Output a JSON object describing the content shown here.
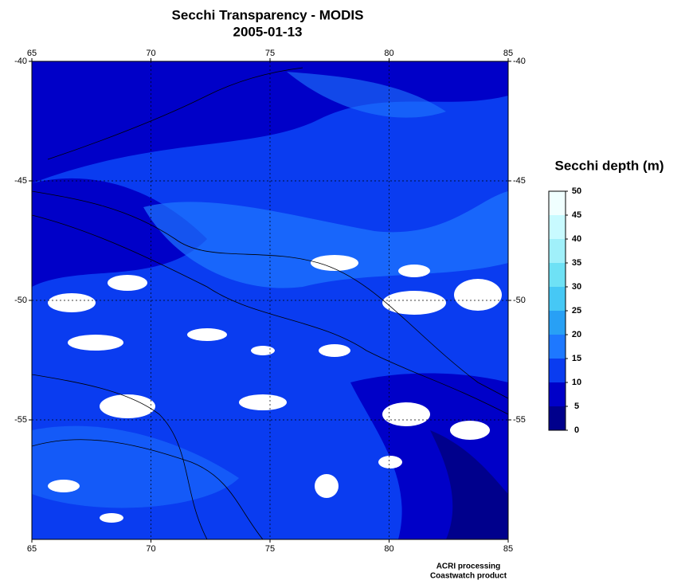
{
  "title": "Secchi Transparency - MODIS",
  "subtitle": "2005-01-13",
  "map": {
    "lonlim": [
      65,
      85
    ],
    "lonticks": [
      65,
      70,
      75,
      80,
      85
    ],
    "latlim": [
      -60,
      -40
    ],
    "latticks": [
      -40,
      -45,
      -50,
      -55
    ],
    "grid": true
  },
  "colorbar": {
    "label": "Secchi depth (m)",
    "range": [
      0,
      50
    ],
    "ticks": [
      0,
      5,
      10,
      15,
      20,
      25,
      30,
      35,
      40,
      45,
      50
    ],
    "colors": [
      "#00008c",
      "#0000c8",
      "#0a3cf0",
      "#1e78ff",
      "#28a0f5",
      "#46c8f5",
      "#6ee1f5",
      "#a0f0fa",
      "#c8faff",
      "#f0ffff"
    ]
  },
  "credits": [
    "ACRI processing",
    "Coastwatch product"
  ]
}
